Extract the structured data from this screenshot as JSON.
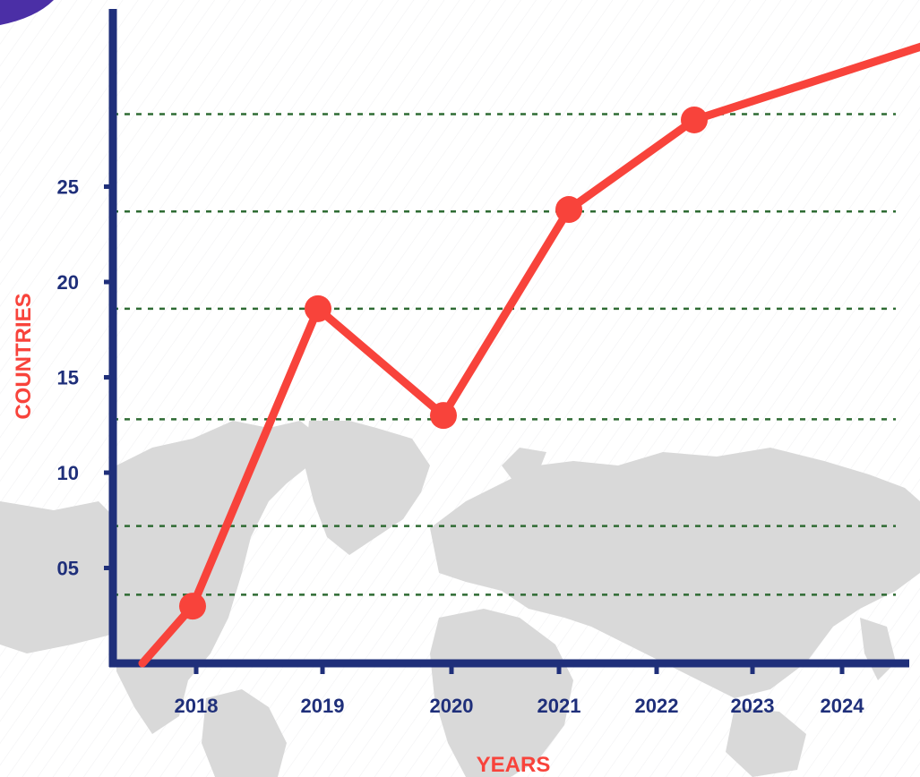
{
  "colors": {
    "axis": "#1f2f7a",
    "line": "#f8433b",
    "grid": "#2e6b33",
    "map": "#d9d9d9",
    "accent": "#4b2fa6"
  },
  "chart_data": {
    "type": "line",
    "xlabel": "YEARS",
    "ylabel": "COUNTRIES",
    "x": [
      "2018",
      "2019",
      "2020",
      "2021",
      "2022",
      "2023",
      "2024"
    ],
    "series": [
      {
        "x": [
          2017.6,
          2018,
          2019,
          2020,
          2021,
          2022,
          2024.4
        ],
        "values": [
          0,
          3,
          18.6,
          13,
          23.8,
          28.5,
          33.6
        ]
      }
    ],
    "ytick_labels": [
      "05",
      "10",
      "15",
      "20",
      "25"
    ],
    "yticks": [
      5,
      10,
      15,
      20,
      25
    ],
    "ylim": [
      0,
      36
    ],
    "grid_lines": [
      3.6,
      7.2,
      12.8,
      18.6,
      23.7,
      28.8
    ],
    "grid": true,
    "legend": "none"
  }
}
